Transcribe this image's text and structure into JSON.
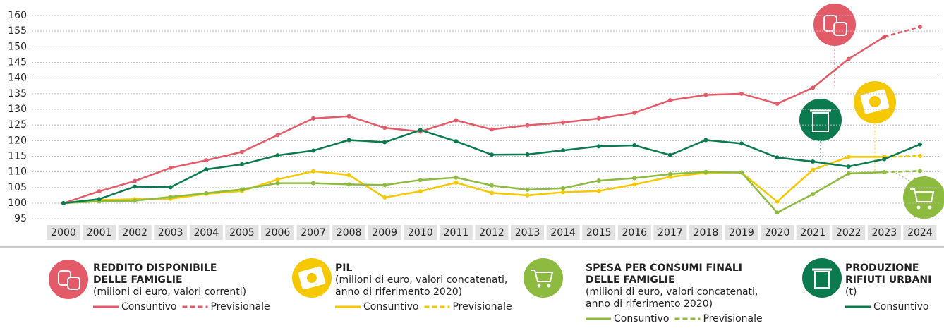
{
  "chart_data": {
    "type": "line",
    "categories": [
      "2000",
      "2001",
      "2002",
      "2003",
      "2004",
      "2005",
      "2006",
      "2007",
      "2008",
      "2009",
      "2010",
      "2011",
      "2012",
      "2013",
      "2014",
      "2015",
      "2016",
      "2017",
      "2018",
      "2019",
      "2020",
      "2021",
      "2022",
      "2023",
      "2024"
    ],
    "ylim": [
      95,
      160
    ],
    "yticks": [
      95,
      100,
      105,
      110,
      115,
      120,
      125,
      130,
      135,
      140,
      145,
      150,
      155,
      160
    ],
    "grid": true,
    "series": [
      {
        "title": [
          "REDDITO DISPONIBILE",
          "DELLE FAMIGLIE"
        ],
        "subtitle": [
          "(milioni di euro, valori correnti)"
        ],
        "color": "#e35a68",
        "consuntivo": {
          "name": "Consuntivo",
          "values": [
            100,
            103.8,
            107.1,
            111.3,
            113.7,
            116.4,
            121.8,
            127.1,
            127.8,
            124.1,
            122.9,
            126.5,
            123.6,
            124.9,
            125.8,
            127.1,
            128.9,
            132.9,
            134.6,
            135.0,
            131.8,
            136.9,
            146.1,
            153.2,
            null
          ]
        },
        "previsionale": {
          "name": "Previsionale",
          "values": [
            null,
            null,
            null,
            null,
            null,
            null,
            null,
            null,
            null,
            null,
            null,
            null,
            null,
            null,
            null,
            null,
            null,
            null,
            null,
            null,
            null,
            null,
            null,
            153.2,
            156.4
          ]
        }
      },
      {
        "title": [
          "PIL"
        ],
        "subtitle": [
          "(milioni di euro, valori concatenati,",
          "anno di riferimento 2020)"
        ],
        "color": "#f5c800",
        "consuntivo": {
          "name": "Consuntivo",
          "values": [
            100,
            101.0,
            101.3,
            101.4,
            103.0,
            103.9,
            107.6,
            110.2,
            109.0,
            101.8,
            103.8,
            106.6,
            103.3,
            102.5,
            103.5,
            103.9,
            106.0,
            108.4,
            109.7,
            109.8,
            100.5,
            110.7,
            114.8,
            114.8,
            null
          ]
        },
        "previsionale": {
          "name": "Previsionale",
          "values": [
            null,
            null,
            null,
            null,
            null,
            null,
            null,
            null,
            null,
            null,
            null,
            null,
            null,
            null,
            null,
            null,
            null,
            null,
            null,
            null,
            null,
            null,
            null,
            114.8,
            115.1
          ]
        }
      },
      {
        "title": [
          "SPESA PER CONSUMI FINALI",
          "DELLE FAMIGLIE"
        ],
        "subtitle": [
          "(milioni di euro, valori concatenati,",
          "anno di riferimento 2020)"
        ],
        "color": "#8dbb3f",
        "consuntivo": {
          "name": "Consuntivo",
          "values": [
            100,
            100.6,
            100.8,
            102.0,
            103.2,
            104.4,
            106.4,
            106.4,
            106.0,
            105.8,
            107.4,
            108.2,
            105.7,
            104.3,
            104.8,
            107.2,
            108.0,
            109.3,
            110.0,
            109.8,
            97.0,
            102.9,
            109.5,
            109.9,
            null
          ]
        },
        "previsionale": {
          "name": "Previsionale",
          "values": [
            null,
            null,
            null,
            null,
            null,
            null,
            null,
            null,
            null,
            null,
            null,
            null,
            null,
            null,
            null,
            null,
            null,
            null,
            null,
            null,
            null,
            null,
            null,
            109.9,
            110.3
          ]
        }
      },
      {
        "title": [
          "PRODUZIONE",
          "RIFIUTI URBANI"
        ],
        "subtitle": [
          "(t)"
        ],
        "color": "#0b7a4f",
        "consuntivo": {
          "name": "Consuntivo",
          "values": [
            100,
            101.3,
            105.3,
            105.1,
            110.8,
            112.4,
            115.3,
            116.8,
            120.2,
            119.5,
            123.4,
            119.8,
            115.5,
            115.6,
            116.9,
            118.2,
            118.5,
            115.4,
            120.2,
            119.1,
            114.6,
            113.3,
            111.7,
            114.1,
            118.8
          ]
        }
      }
    ]
  }
}
